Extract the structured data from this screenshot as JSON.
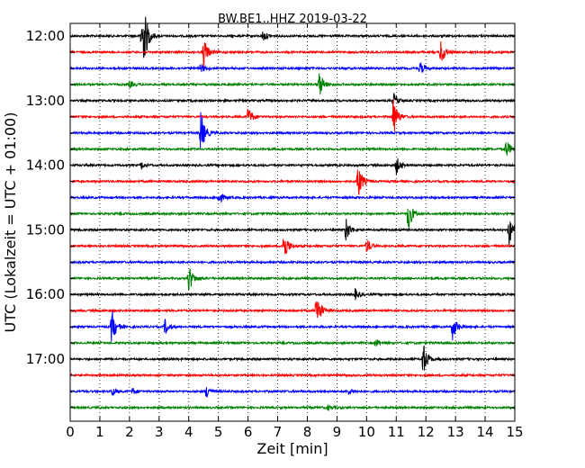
{
  "chart_data": {
    "type": "line",
    "title": "BW.BE1..HHZ 2019-03-22",
    "xlabel": "Zeit  [min]",
    "ylabel": "UTC (Lokalzeit = UTC + 01:00)",
    "xlim": [
      0,
      15
    ],
    "x_ticks": [
      "0",
      "1",
      "2",
      "3",
      "4",
      "5",
      "6",
      "7",
      "8",
      "9",
      "10",
      "11",
      "12",
      "13",
      "14",
      "15"
    ],
    "y_tick_labels": [
      "12:00",
      "13:00",
      "14:00",
      "15:00",
      "16:00",
      "17:00"
    ],
    "grid": "vertical dotted",
    "line_interval_min": 15,
    "start_time": "12:00",
    "trace_colors": [
      "#000000",
      "#ff0000",
      "#0000ff",
      "#008000"
    ],
    "series": [
      {
        "start": "12:00",
        "events": [
          {
            "t": 2.4,
            "amp": 1.0
          },
          {
            "t": 2.5,
            "amp": 0.8
          },
          {
            "t": 6.5,
            "amp": 0.25
          }
        ]
      },
      {
        "start": "12:15",
        "events": [
          {
            "t": 4.5,
            "amp": 0.7
          },
          {
            "t": 12.5,
            "amp": 0.6
          }
        ]
      },
      {
        "start": "12:30",
        "events": [
          {
            "t": 4.4,
            "amp": 0.2
          },
          {
            "t": 11.8,
            "amp": 0.3
          }
        ]
      },
      {
        "start": "12:45",
        "events": [
          {
            "t": 8.4,
            "amp": 0.6
          },
          {
            "t": 2.0,
            "amp": 0.15
          }
        ]
      },
      {
        "start": "13:00",
        "events": [
          {
            "t": 10.9,
            "amp": 0.35
          }
        ]
      },
      {
        "start": "13:15",
        "events": [
          {
            "t": 6.0,
            "amp": 0.45
          },
          {
            "t": 10.9,
            "amp": 0.9
          }
        ]
      },
      {
        "start": "13:30",
        "events": [
          {
            "t": 4.4,
            "amp": 1.0
          }
        ]
      },
      {
        "start": "13:45",
        "events": [
          {
            "t": 14.7,
            "amp": 0.45
          }
        ]
      },
      {
        "start": "14:00",
        "events": [
          {
            "t": 11.0,
            "amp": 0.4
          },
          {
            "t": 2.4,
            "amp": 0.15
          }
        ]
      },
      {
        "start": "14:15",
        "events": [
          {
            "t": 9.7,
            "amp": 0.9
          }
        ]
      },
      {
        "start": "14:30",
        "events": [
          {
            "t": 5.0,
            "amp": 0.3
          }
        ]
      },
      {
        "start": "14:45",
        "events": [
          {
            "t": 11.4,
            "amp": 0.8
          }
        ]
      },
      {
        "start": "15:00",
        "events": [
          {
            "t": 9.3,
            "amp": 0.55
          },
          {
            "t": 14.8,
            "amp": 0.7
          }
        ]
      },
      {
        "start": "15:15",
        "events": [
          {
            "t": 7.2,
            "amp": 0.75
          },
          {
            "t": 10.0,
            "amp": 0.35
          }
        ]
      },
      {
        "start": "15:30",
        "events": []
      },
      {
        "start": "15:45",
        "events": [
          {
            "t": 4.0,
            "amp": 0.65
          }
        ]
      },
      {
        "start": "16:00",
        "events": [
          {
            "t": 9.6,
            "amp": 0.25
          }
        ]
      },
      {
        "start": "16:15",
        "events": [
          {
            "t": 8.3,
            "amp": 1.0
          }
        ]
      },
      {
        "start": "16:30",
        "events": [
          {
            "t": 1.4,
            "amp": 0.8
          },
          {
            "t": 3.2,
            "amp": 0.35
          },
          {
            "t": 12.9,
            "amp": 0.6
          }
        ]
      },
      {
        "start": "16:45",
        "events": [
          {
            "t": 10.3,
            "amp": 0.2
          }
        ]
      },
      {
        "start": "17:00",
        "events": [
          {
            "t": 11.9,
            "amp": 0.8
          }
        ]
      },
      {
        "start": "17:15",
        "events": []
      },
      {
        "start": "17:30",
        "events": [
          {
            "t": 1.4,
            "amp": 0.2
          },
          {
            "t": 2.1,
            "amp": 0.15
          },
          {
            "t": 4.6,
            "amp": 0.3
          },
          {
            "t": 9.4,
            "amp": 0.15
          }
        ]
      },
      {
        "start": "17:45",
        "events": [
          {
            "t": 8.7,
            "amp": 0.1
          }
        ]
      }
    ]
  }
}
